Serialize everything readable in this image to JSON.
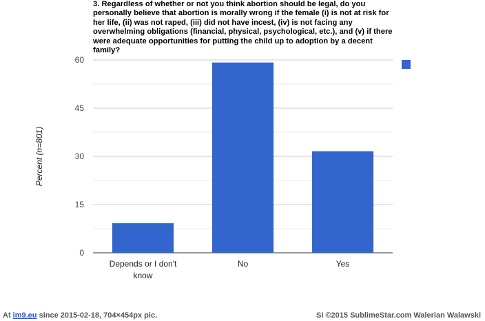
{
  "chart_data": {
    "type": "bar",
    "title": "3. Regardless of whether or not you think abortion should be legal, do you personally believe that abortion is morally wrong if the female (i) is not at risk for her life, (ii) was not raped, (iii) did not have incest, (iv) is not facing any overwhelming obligations (financial, physical, psychological, etc.), and (v) if there were adequate opportunities for putting the child up to adoption by a decent family?",
    "ylabel": "Percent (n=801)",
    "xlabel": "",
    "categories": [
      [
        "Depends or I don't",
        "know"
      ],
      [
        "No"
      ],
      [
        "Yes"
      ]
    ],
    "values": [
      9.2,
      59.2,
      31.6
    ],
    "ylim": [
      0,
      60
    ],
    "yticks": [
      "0",
      "15",
      "30",
      "45",
      "60"
    ],
    "grid": true,
    "legend": "top-right",
    "bar_color": "#3366cc"
  },
  "footer": {
    "at": "At",
    "site": "im9.eu",
    "rest": "since 2015-02-18, 704×454px pic.",
    "right": "SI ©2015 SublimeStar.com Walerian Walawski"
  }
}
